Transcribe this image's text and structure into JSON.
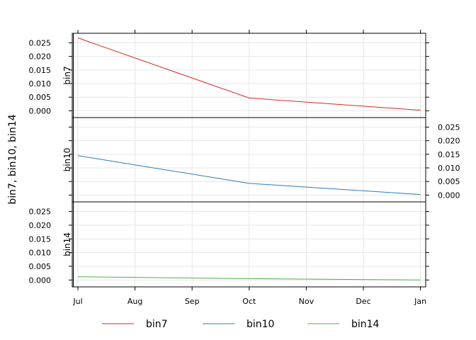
{
  "chart_data": {
    "type": "line",
    "layout": "stacked-panels",
    "ylabel": "bin7, bin10, bin14",
    "x_ticks": [
      "Jul",
      "Aug",
      "Sep",
      "Oct",
      "Nov",
      "Dec",
      "Jan"
    ],
    "y_ticks": [
      "0.000",
      "0.005",
      "0.010",
      "0.015",
      "0.020",
      "0.025"
    ],
    "ylim": [
      -0.0025,
      0.0285
    ],
    "grid": true,
    "legend_position": "bottom",
    "panels_top_to_bottom": [
      "bin7",
      "bin10",
      "bin14"
    ],
    "series": [
      {
        "name": "bin7",
        "color": "#d62728",
        "points": [
          {
            "x": "Jul",
            "y": 0.0268
          },
          {
            "x": "Oct",
            "y": 0.0047
          },
          {
            "x": "Jan",
            "y": 0.0002
          }
        ]
      },
      {
        "name": "bin10",
        "color": "#2c7bb6",
        "points": [
          {
            "x": "Jul",
            "y": 0.0145
          },
          {
            "x": "Oct",
            "y": 0.0043
          },
          {
            "x": "Jan",
            "y": 0.0002
          }
        ]
      },
      {
        "name": "bin14",
        "color": "#4daf4a",
        "points": [
          {
            "x": "Jul",
            "y": 0.0012
          },
          {
            "x": "Oct",
            "y": 0.0005
          },
          {
            "x": "Jan",
            "y": 0.0
          }
        ]
      }
    ]
  }
}
